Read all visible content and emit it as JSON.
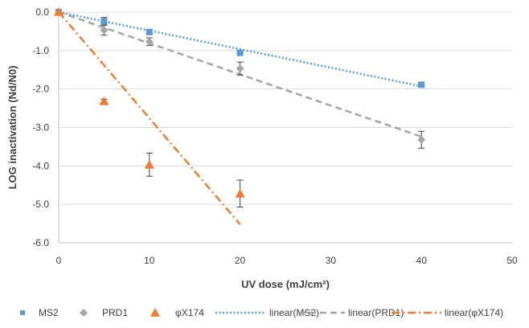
{
  "chart_data": {
    "type": "scatter",
    "xlabel": "UV dose (mJ/cm²)",
    "ylabel": "LOG inactivation (Nd/N0)",
    "xlim": [
      0,
      50
    ],
    "ylim": [
      -6,
      0
    ],
    "x_ticks": [
      0,
      10,
      20,
      30,
      40,
      50
    ],
    "y_ticks": [
      0,
      -1,
      -2,
      -3,
      -4,
      -5,
      -6
    ],
    "x_tick_labels": [
      "0",
      "10",
      "20",
      "30",
      "40",
      "50"
    ],
    "y_tick_labels": [
      "0.0",
      "-1.0",
      "-2.0",
      "-3.0",
      "-4.0",
      "-5.0",
      "-6.0"
    ],
    "grid": "horizontal",
    "legend_position": "bottom",
    "series": [
      {
        "name": "MS2",
        "marker": "square",
        "color": "#5B9BD5",
        "points": [
          {
            "x": 0,
            "y": 0.0,
            "err": 0.03
          },
          {
            "x": 5,
            "y": -0.24,
            "err": 0.1
          },
          {
            "x": 10,
            "y": -0.52,
            "err": 0.05
          },
          {
            "x": 20,
            "y": -1.06,
            "err": 0.06
          },
          {
            "x": 40,
            "y": -1.89,
            "err": 0.04
          }
        ]
      },
      {
        "name": "PRD1",
        "marker": "diamond",
        "color": "#A5A5A5",
        "points": [
          {
            "x": 0,
            "y": 0.0,
            "err": 0.03
          },
          {
            "x": 5,
            "y": -0.47,
            "err": 0.13
          },
          {
            "x": 10,
            "y": -0.77,
            "err": 0.1
          },
          {
            "x": 20,
            "y": -1.47,
            "err": 0.17
          },
          {
            "x": 40,
            "y": -3.32,
            "err": 0.22
          }
        ]
      },
      {
        "name": "φX174",
        "marker": "triangle",
        "color": "#ED7D31",
        "points": [
          {
            "x": 0,
            "y": 0.0,
            "err": 0.03
          },
          {
            "x": 5,
            "y": -2.32,
            "err": 0.05
          },
          {
            "x": 10,
            "y": -3.97,
            "err": 0.3
          },
          {
            "x": 20,
            "y": -4.72,
            "err": 0.35
          }
        ]
      }
    ],
    "trendlines": [
      {
        "name": "linear(MS2)",
        "of": "MS2",
        "style": "dotted",
        "color": "#5B9BD5",
        "x": [
          0,
          40
        ],
        "y": [
          0.0,
          -1.93
        ]
      },
      {
        "name": "linear(PRD1)",
        "of": "PRD1",
        "style": "dashed",
        "color": "#A5A5A5",
        "x": [
          0,
          40
        ],
        "y": [
          0.0,
          -3.24
        ]
      },
      {
        "name": "linear(φX174)",
        "of": "φX174",
        "style": "dash-dot",
        "color": "#ED7D31",
        "x": [
          0,
          20
        ],
        "y": [
          0.0,
          -5.52
        ]
      }
    ]
  }
}
